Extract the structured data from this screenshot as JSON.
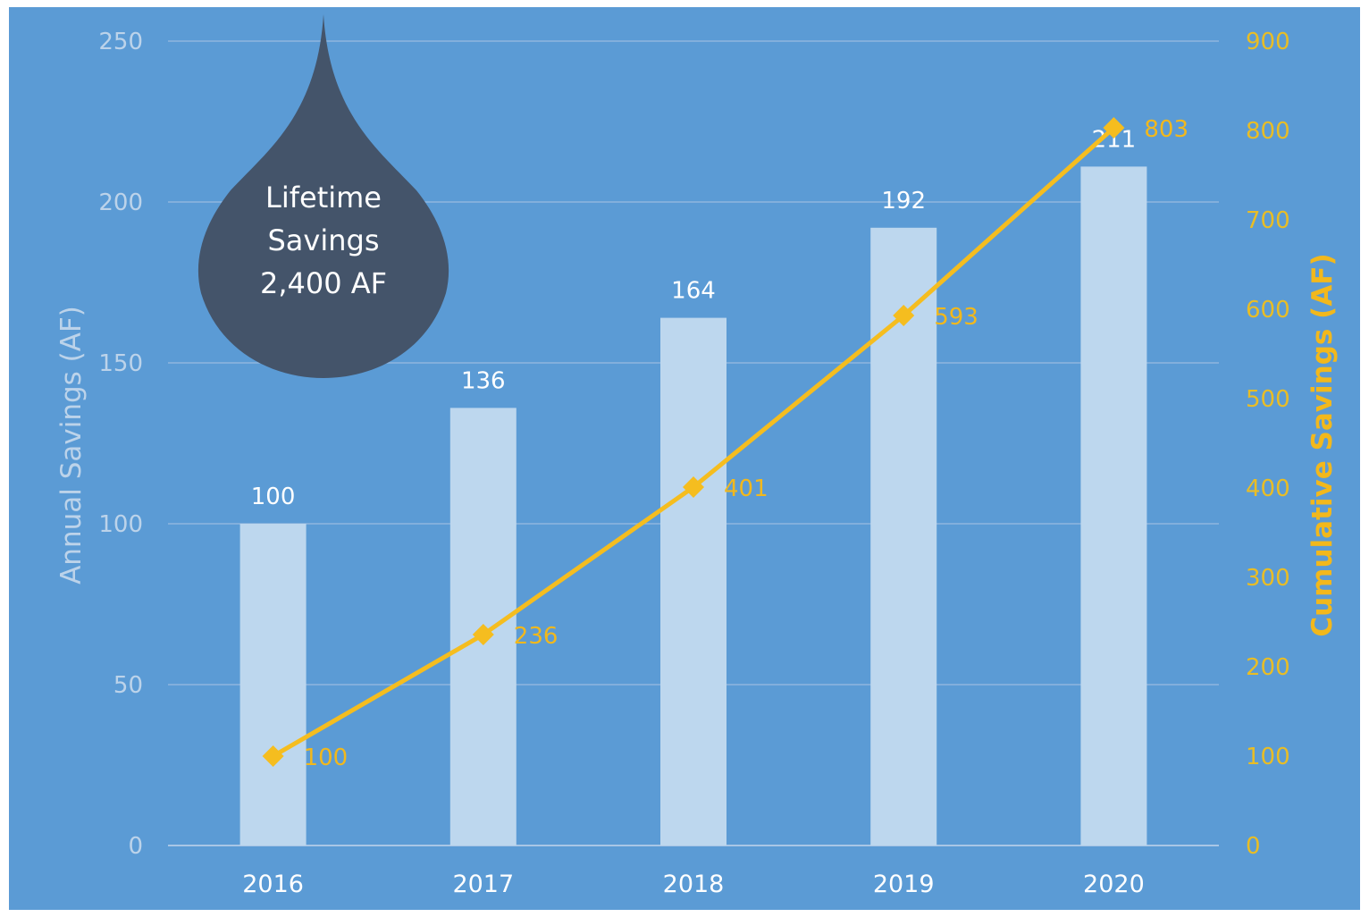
{
  "chart_data": {
    "type": "bar",
    "categories": [
      "2016",
      "2017",
      "2018",
      "2019",
      "2020"
    ],
    "series": [
      {
        "name": "",
        "type": "bar",
        "axis": "left",
        "values": [
          100,
          136,
          164,
          192,
          211
        ],
        "color": "#bdd7ee"
      },
      {
        "name": "",
        "type": "line",
        "axis": "right",
        "values": [
          100,
          236,
          401,
          593,
          803
        ],
        "color": "#f5bd1f"
      }
    ],
    "ylabel": "Annual Savings (AF)",
    "y2label": "Cumulative Savings (AF)",
    "ylim": [
      0,
      250
    ],
    "y2lim": [
      0,
      900
    ],
    "yticks": [
      0,
      50,
      100,
      150,
      200,
      250
    ],
    "y2ticks": [
      0,
      100,
      200,
      300,
      400,
      500,
      600,
      700,
      800,
      900
    ],
    "grid": true,
    "legend": "none",
    "annotation": {
      "lines": [
        "Lifetime",
        "Savings",
        "2,400 AF"
      ],
      "color": "#44546a"
    },
    "background_color": "#5b9bd5"
  }
}
